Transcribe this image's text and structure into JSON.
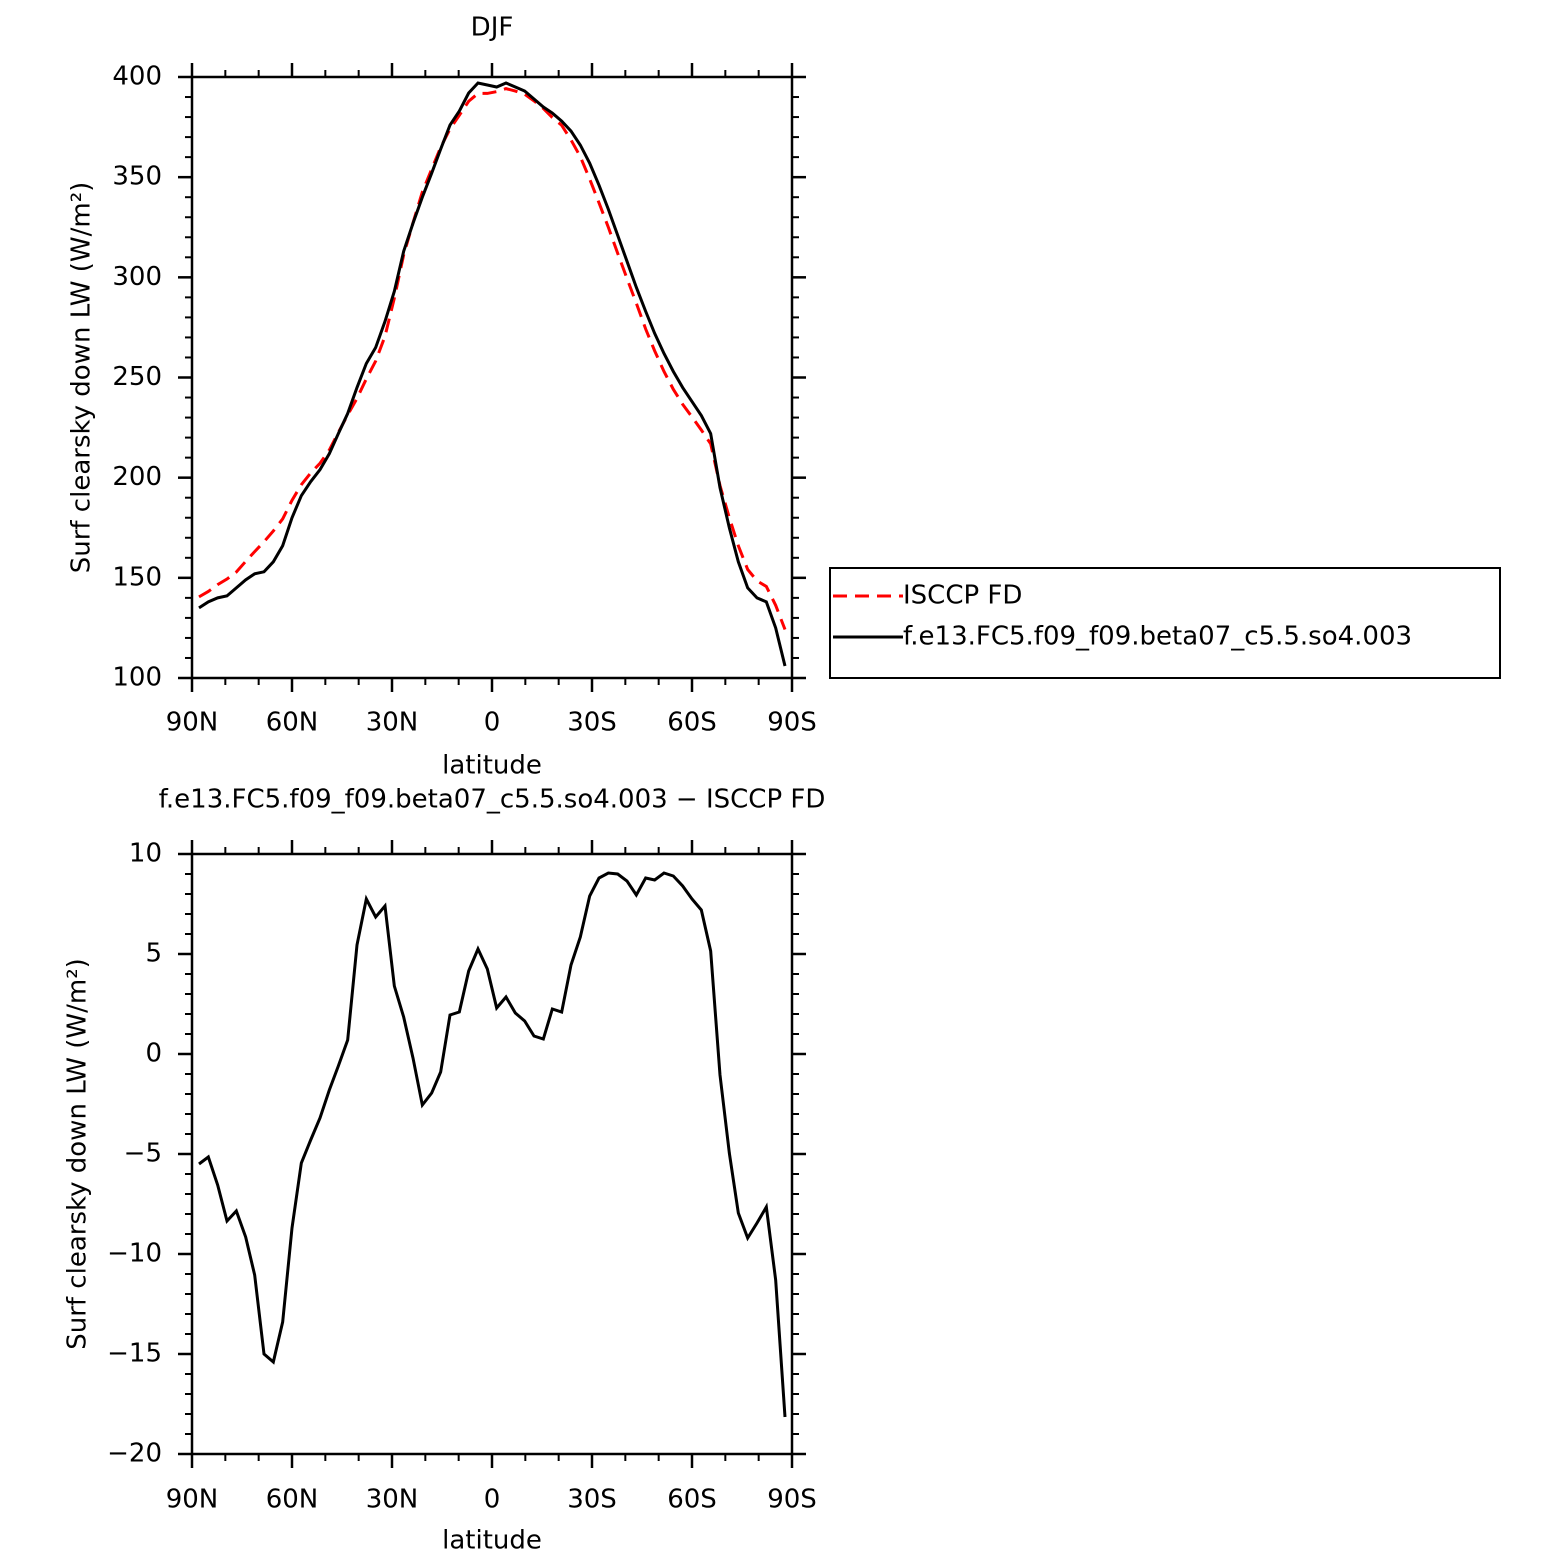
{
  "chart_data": [
    {
      "type": "line",
      "title": "DJF",
      "xlabel": "latitude",
      "ylabel": "Surf clearsky down LW (W/m²)",
      "x": [
        87.9,
        85.1,
        82.3,
        79.5,
        76.7,
        73.9,
        71.2,
        68.4,
        65.6,
        62.8,
        60.0,
        57.2,
        54.4,
        51.6,
        48.8,
        46.1,
        43.3,
        40.5,
        37.7,
        34.9,
        32.1,
        29.3,
        26.5,
        23.7,
        20.9,
        18.1,
        15.4,
        12.6,
        9.8,
        7.0,
        4.2,
        1.4,
        -1.4,
        -4.2,
        -7.0,
        -9.8,
        -12.6,
        -15.4,
        -18.1,
        -20.9,
        -23.7,
        -26.5,
        -29.3,
        -32.1,
        -34.9,
        -37.7,
        -40.5,
        -43.3,
        -46.1,
        -48.8,
        -51.6,
        -54.4,
        -57.2,
        -60.0,
        -62.8,
        -65.6,
        -68.4,
        -71.2,
        -73.9,
        -76.7,
        -79.5,
        -82.3,
        -85.1,
        -87.9
      ],
      "series": [
        {
          "name": "ISCCP FD",
          "color": "#ff0000",
          "linestyle": "dashed",
          "values": [
            140.5,
            143.2,
            146.6,
            149.4,
            152.9,
            158.2,
            163.1,
            168.0,
            173.4,
            179.4,
            188.7,
            196.5,
            202.3,
            207.2,
            213.8,
            222.6,
            231.3,
            239.6,
            249.3,
            258.2,
            270.6,
            289.6,
            311.2,
            327.2,
            342.6,
            354.0,
            364.9,
            374.1,
            380.9,
            387.9,
            391.8,
            391.8,
            392.7,
            394.2,
            393.0,
            391.4,
            388.1,
            384.3,
            379.8,
            375.9,
            368.6,
            360.2,
            349.1,
            337.2,
            325.0,
            312.0,
            299.4,
            287.1,
            274.2,
            263.3,
            253.0,
            244.1,
            236.6,
            230.3,
            223.8,
            216.9,
            196.1,
            180.0,
            166.0,
            154.2,
            148.5,
            145.7,
            136.3,
            124.2
          ]
        },
        {
          "name": "f.e13.FC5.f09_f09.beta07_c5.5.so4.003",
          "color": "#000000",
          "linestyle": "solid",
          "values": [
            135,
            138,
            140,
            141,
            145,
            149,
            152,
            153,
            158,
            166,
            180,
            191,
            198,
            204,
            212,
            222,
            232,
            245,
            257,
            265,
            278,
            293,
            313,
            327,
            340,
            352,
            364,
            376,
            383,
            392,
            397,
            396,
            395,
            397,
            395,
            393,
            389,
            385,
            382,
            378,
            373,
            366,
            357,
            346,
            334,
            321,
            308,
            295,
            283,
            272,
            262,
            253,
            245,
            238,
            231,
            222,
            195,
            175,
            158,
            145,
            140,
            138,
            125,
            106
          ]
        }
      ],
      "xlim": [
        90,
        -90
      ],
      "xticks": [
        {
          "value": 90,
          "label": "90N"
        },
        {
          "value": 60,
          "label": "60N"
        },
        {
          "value": 30,
          "label": "30N"
        },
        0,
        {
          "value": -30,
          "label": "30S"
        },
        {
          "value": -60,
          "label": "60S"
        },
        {
          "value": -90,
          "label": "90S"
        }
      ],
      "ylim": [
        100,
        400
      ],
      "yticks": [
        100,
        150,
        200,
        250,
        300,
        350,
        400
      ],
      "legend": "right"
    },
    {
      "type": "line",
      "title": "f.e13.FC5.f09_f09.beta07_c5.5.so4.003 − ISCCP FD",
      "xlabel": "latitude",
      "ylabel": "Surf clearsky down LW (W/m²)",
      "x": [
        87.9,
        85.1,
        82.3,
        79.5,
        76.7,
        73.9,
        71.2,
        68.4,
        65.6,
        62.8,
        60.0,
        57.2,
        54.4,
        51.6,
        48.8,
        46.1,
        43.3,
        40.5,
        37.7,
        34.9,
        32.1,
        29.3,
        26.5,
        23.7,
        20.9,
        18.1,
        15.4,
        12.6,
        9.8,
        7.0,
        4.2,
        1.4,
        -1.4,
        -4.2,
        -7.0,
        -9.8,
        -12.6,
        -15.4,
        -18.1,
        -20.9,
        -23.7,
        -26.5,
        -29.3,
        -32.1,
        -34.9,
        -37.7,
        -40.5,
        -43.3,
        -46.1,
        -48.8,
        -51.6,
        -54.4,
        -57.2,
        -60.0,
        -62.8,
        -65.6,
        -68.4,
        -71.2,
        -73.9,
        -76.7,
        -79.5,
        -82.3,
        -85.1,
        -87.9
      ],
      "values": [
        -5.5,
        -5.15,
        -6.55,
        -8.35,
        -7.85,
        -9.15,
        -11.05,
        -15.0,
        -15.4,
        -13.4,
        -8.7,
        -5.45,
        -4.3,
        -3.2,
        -1.8,
        -0.6,
        0.7,
        5.45,
        7.75,
        6.85,
        7.4,
        3.4,
        1.85,
        -0.2,
        -2.55,
        -1.95,
        -0.9,
        1.95,
        2.1,
        4.15,
        5.25,
        4.25,
        2.3,
        2.85,
        2.05,
        1.65,
        0.9,
        0.75,
        2.25,
        2.1,
        4.45,
        5.85,
        7.9,
        8.8,
        9.05,
        9.0,
        8.65,
        7.95,
        8.8,
        8.7,
        9.05,
        8.9,
        8.4,
        7.75,
        7.2,
        5.15,
        -1.05,
        -4.95,
        -7.95,
        -9.2,
        -8.45,
        -7.65,
        -11.3,
        -18.15
      ],
      "color": "#000000",
      "linestyle": "solid",
      "xlim": [
        90,
        -90
      ],
      "xticks": [
        {
          "value": 90,
          "label": "90N"
        },
        {
          "value": 60,
          "label": "60N"
        },
        {
          "value": 30,
          "label": "30N"
        },
        0,
        {
          "value": -30,
          "label": "30S"
        },
        {
          "value": -60,
          "label": "60S"
        },
        {
          "value": -90,
          "label": "90S"
        }
      ],
      "ylim": [
        -20,
        10
      ],
      "yticks": [
        {
          "value": -20,
          "label": "−20"
        },
        {
          "value": -15,
          "label": "−15"
        },
        {
          "value": -10,
          "label": "−10"
        },
        {
          "value": -5,
          "label": "−5"
        },
        0,
        5,
        10
      ]
    }
  ]
}
